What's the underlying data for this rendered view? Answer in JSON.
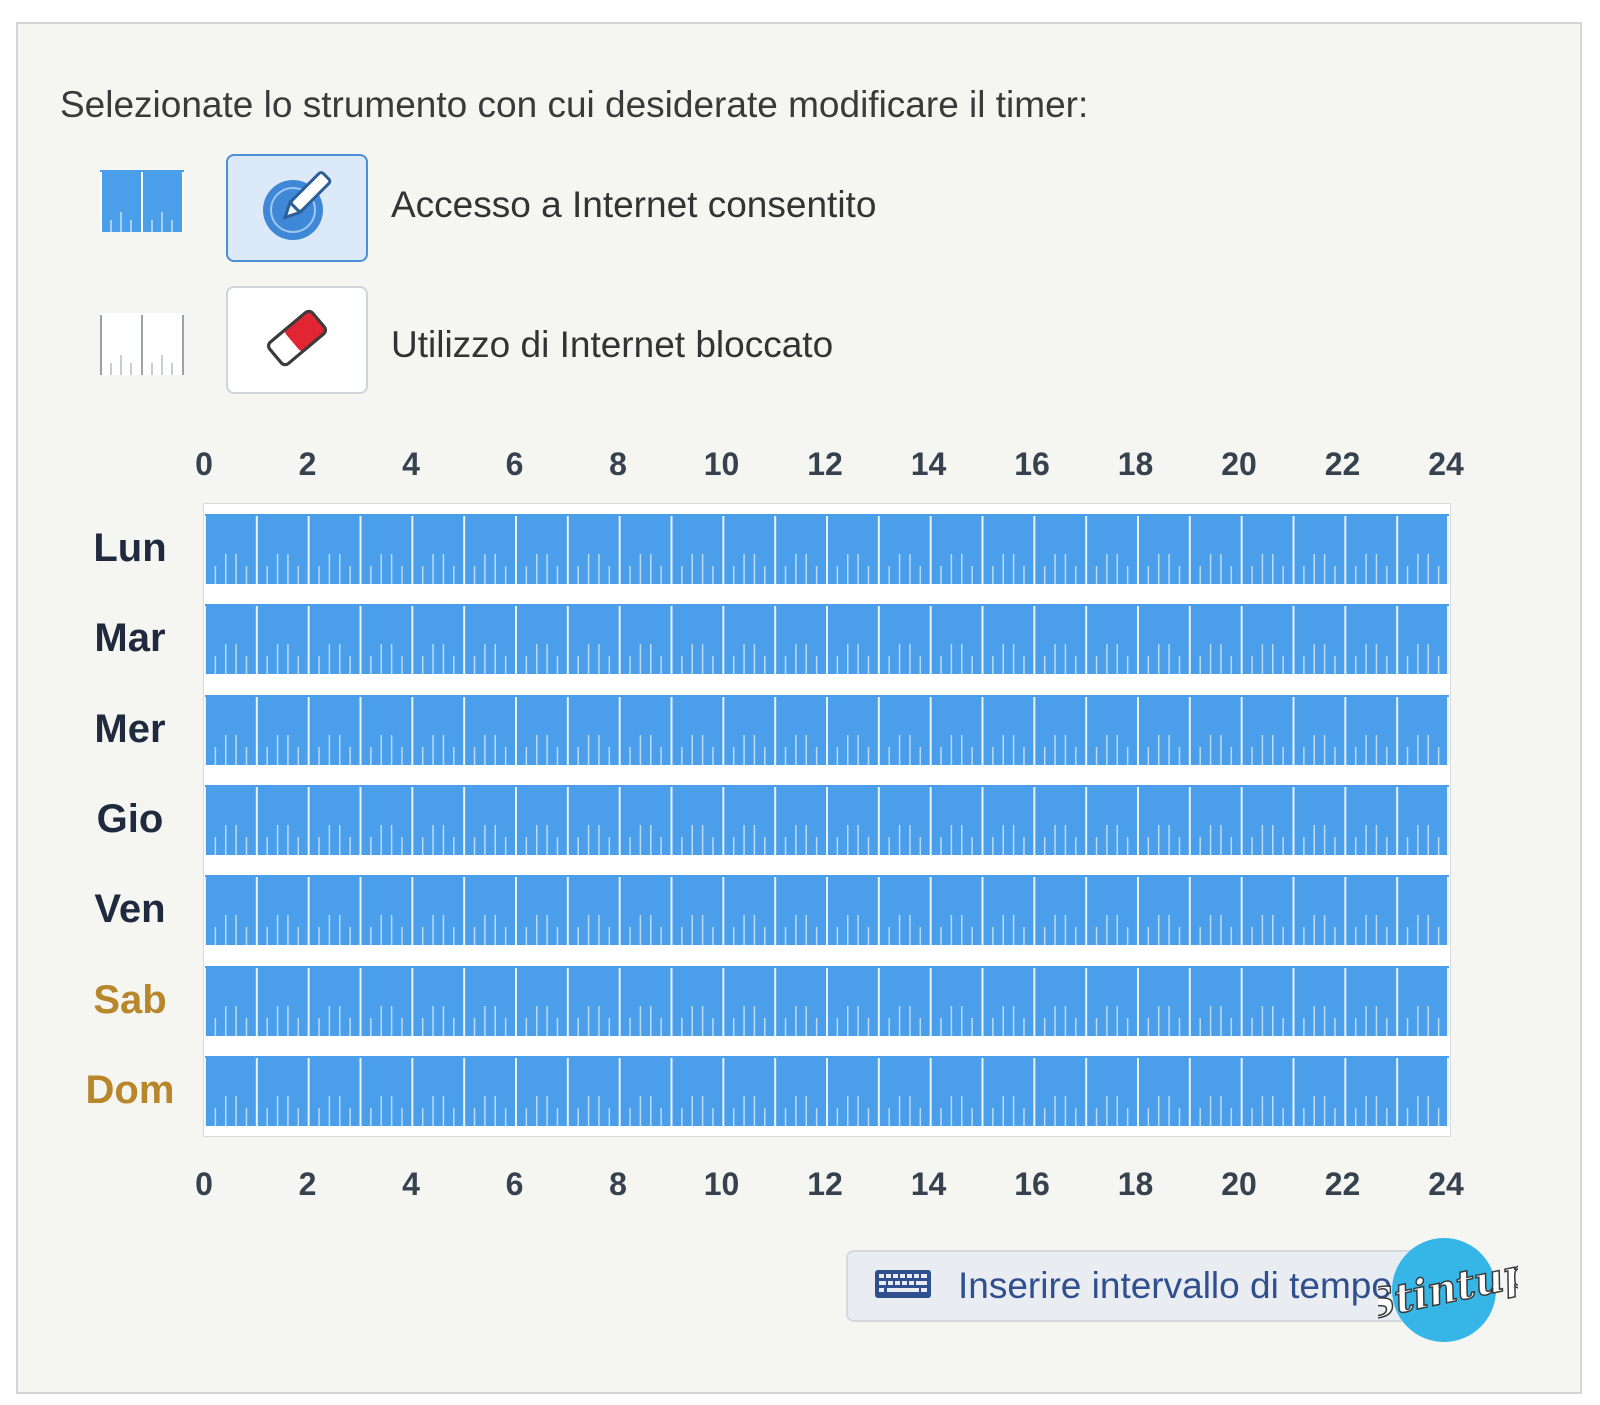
{
  "instruction": "Selezionate lo strumento con cui desiderate modificare il timer:",
  "tools": [
    {
      "label": "Accesso a Internet consentito",
      "icon": "pencil-icon",
      "selected": true
    },
    {
      "label": "Utilizzo di Internet bloccato",
      "icon": "eraser-icon",
      "selected": false
    }
  ],
  "axis_ticks": [
    "0",
    "2",
    "4",
    "6",
    "8",
    "10",
    "12",
    "14",
    "16",
    "18",
    "20",
    "22",
    "24"
  ],
  "days": [
    {
      "label": "Lun",
      "weekend": false,
      "allowed_hours": 24
    },
    {
      "label": "Mar",
      "weekend": false,
      "allowed_hours": 24
    },
    {
      "label": "Mer",
      "weekend": false,
      "allowed_hours": 24
    },
    {
      "label": "Gio",
      "weekend": false,
      "allowed_hours": 24
    },
    {
      "label": "Ven",
      "weekend": false,
      "allowed_hours": 24
    },
    {
      "label": "Sab",
      "weekend": true,
      "allowed_hours": 24
    },
    {
      "label": "Dom",
      "weekend": true,
      "allowed_hours": 24
    }
  ],
  "time_button": {
    "label": "Inserire intervallo di tempo",
    "icon": "keyboard-icon"
  },
  "logo_text": "Stintup",
  "colors": {
    "allowed": "#4a9eea",
    "blocked": "#ffffff",
    "weekend_label": "#b8862b",
    "weekday_label": "#1f2a3f"
  }
}
